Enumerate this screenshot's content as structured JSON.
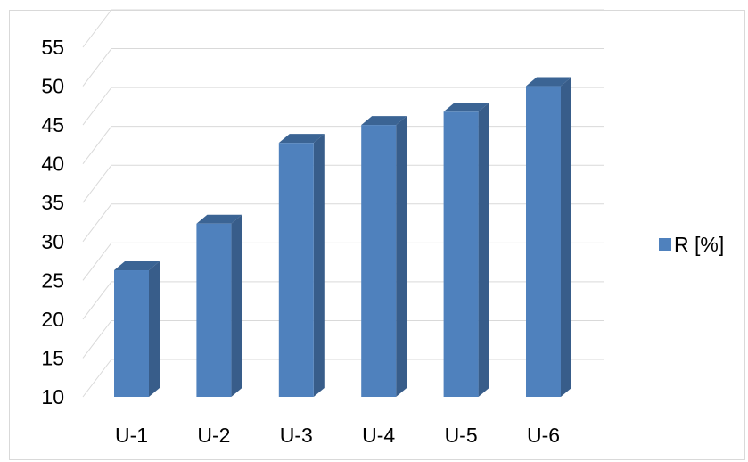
{
  "chart_data": {
    "type": "bar",
    "style": "3d-column",
    "categories": [
      "U-1",
      "U-2",
      "U-3",
      "U-4",
      "U-5",
      "U-6"
    ],
    "series": [
      {
        "name": "R [%]",
        "values": [
          26.3,
          32.3,
          42.7,
          45.0,
          46.7,
          50.0
        ],
        "color": "#4f81bd"
      }
    ],
    "ylim": [
      10,
      55
    ],
    "yticks": [
      10,
      15,
      20,
      25,
      30,
      35,
      40,
      45,
      50,
      55
    ],
    "grid": true,
    "legend": "right",
    "colors": {
      "bar_front": "#4f81bd",
      "bar_side": "#385d8a",
      "bar_top": "#3b6494",
      "grid": "#d9d9d9"
    }
  }
}
